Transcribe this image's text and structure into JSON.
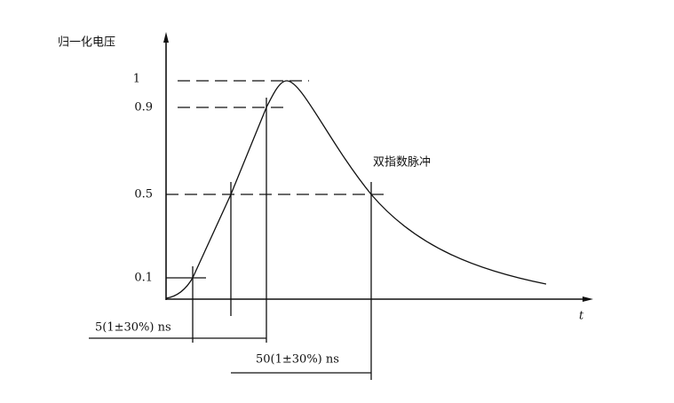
{
  "y_axis_label": "归一化电压",
  "x_axis_label": "t",
  "y_levels": [
    "1",
    "0.9",
    "0.5",
    "0.1"
  ],
  "curve_label": "双指数脉冲",
  "rise_time_label": "5(1±30%) ns",
  "pulse_width_label": "50(1±30%) ns"
}
